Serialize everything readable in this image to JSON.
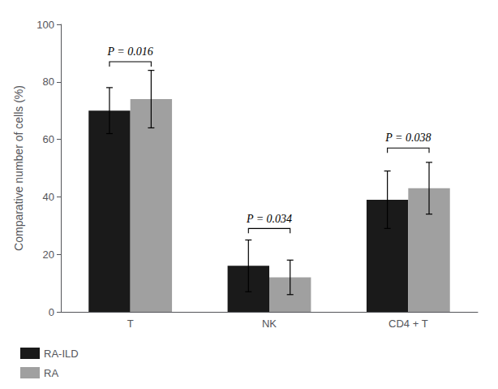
{
  "chart_data": {
    "type": "bar",
    "categories": [
      "T",
      "NK",
      "CD4 + T"
    ],
    "series": [
      {
        "name": "RA-ILD",
        "color": "#1a1a1a",
        "values": [
          70,
          16,
          39
        ],
        "errors": [
          8,
          9,
          10
        ]
      },
      {
        "name": "RA",
        "color": "#a0a0a0",
        "values": [
          74,
          12,
          43
        ],
        "errors": [
          10,
          6,
          9
        ]
      }
    ],
    "ylabel": "Comparative number of cells (%)",
    "ylim": [
      0,
      100
    ],
    "yticks": [
      0,
      20,
      40,
      60,
      80,
      100
    ],
    "annotations": [
      {
        "text": "P = 0.016",
        "category": "T",
        "bracket_y": 87,
        "y": 88.5
      },
      {
        "text": "P = 0.034",
        "category": "NK",
        "bracket_y": 29,
        "y": 30.5
      },
      {
        "text": "P = 0.038",
        "category": "CD4 + T",
        "bracket_y": 57,
        "y": 58.5
      }
    ],
    "grid": false,
    "legend": "lower left"
  }
}
